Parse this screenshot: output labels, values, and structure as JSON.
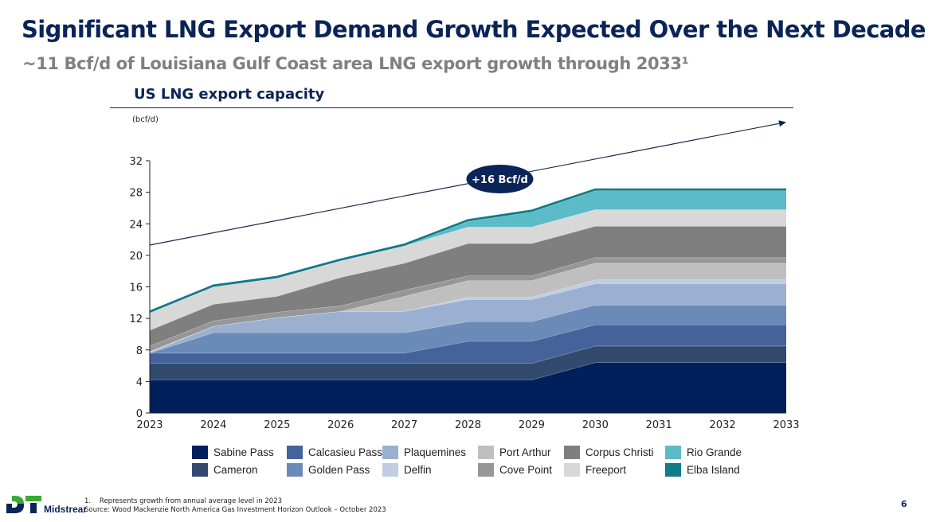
{
  "header": {
    "title": "Significant LNG Export Demand Growth Expected Over the Next Decade",
    "subtitle": "~11 Bcf/d of Louisiana Gulf Coast area LNG export growth through 2033¹"
  },
  "chart_data": {
    "type": "area",
    "stacked": true,
    "title": "US LNG export capacity",
    "units_label": "(bcf/d)",
    "xlabel": "",
    "ylabel": "bcf/d",
    "ylim": [
      0,
      32
    ],
    "yticks": [
      0,
      4,
      8,
      12,
      16,
      20,
      24,
      28,
      32
    ],
    "categories": [
      "2023",
      "2024",
      "2025",
      "2026",
      "2027",
      "2028",
      "2029",
      "2030",
      "2031",
      "2032",
      "2033"
    ],
    "grid": false,
    "legend_position": "bottom",
    "annotation": {
      "label": "+16 Bcf/d",
      "type": "trend-arrow",
      "from": {
        "x": "2023",
        "y": 21.3
      },
      "to": {
        "x": "2033",
        "y": 36.9
      }
    },
    "series": [
      {
        "name": "Sabine Pass",
        "color": "#001f5b",
        "values": [
          4.2,
          4.2,
          4.2,
          4.2,
          4.2,
          4.2,
          4.2,
          6.4,
          6.4,
          6.4,
          6.4
        ]
      },
      {
        "name": "Cameron",
        "color": "#324a6e",
        "values": [
          2.1,
          2.1,
          2.1,
          2.1,
          2.1,
          2.1,
          2.1,
          2.1,
          2.1,
          2.1,
          2.1
        ]
      },
      {
        "name": "Calcasieu Pass",
        "color": "#45639a",
        "values": [
          1.3,
          1.3,
          1.3,
          1.3,
          1.3,
          2.8,
          2.8,
          2.7,
          2.7,
          2.7,
          2.7
        ]
      },
      {
        "name": "Golden Pass",
        "color": "#6a8ab8",
        "values": [
          0.0,
          2.6,
          2.6,
          2.6,
          2.6,
          2.5,
          2.5,
          2.5,
          2.5,
          2.5,
          2.5
        ]
      },
      {
        "name": "Plaquemines",
        "color": "#9bb0d0",
        "values": [
          0.1,
          0.8,
          1.9,
          2.7,
          2.7,
          2.8,
          2.8,
          2.7,
          2.7,
          2.7,
          2.7
        ]
      },
      {
        "name": "Delfin",
        "color": "#c0cde2",
        "values": [
          0.1,
          0.0,
          0.0,
          0.0,
          0.0,
          0.3,
          0.3,
          0.5,
          0.5,
          0.5,
          0.5
        ]
      },
      {
        "name": "Port Arthur",
        "color": "#bfbfbf",
        "values": [
          0.0,
          0.0,
          0.0,
          0.0,
          1.9,
          2.1,
          2.1,
          2.1,
          2.1,
          2.1,
          2.1
        ]
      },
      {
        "name": "Cove Point",
        "color": "#979797",
        "values": [
          0.7,
          0.7,
          0.7,
          0.7,
          0.8,
          0.6,
          0.6,
          0.7,
          0.7,
          0.7,
          0.7
        ]
      },
      {
        "name": "Corpus Christi",
        "color": "#7f7f7f",
        "values": [
          2.0,
          2.1,
          2.0,
          3.6,
          3.4,
          4.1,
          4.1,
          4.0,
          4.0,
          4.0,
          4.0
        ]
      },
      {
        "name": "Freeport",
        "color": "#d8d8d8",
        "values": [
          2.2,
          2.2,
          2.3,
          2.1,
          2.2,
          2.1,
          2.1,
          2.1,
          2.1,
          2.1,
          2.1
        ]
      },
      {
        "name": "Rio Grande",
        "color": "#5bbcc7",
        "values": [
          0.0,
          0.0,
          0.0,
          0.0,
          0.0,
          0.7,
          1.9,
          2.4,
          2.4,
          2.4,
          2.4
        ]
      },
      {
        "name": "Elba Island",
        "color": "#127b88",
        "values": [
          0.2,
          0.2,
          0.2,
          0.2,
          0.2,
          0.2,
          0.2,
          0.2,
          0.2,
          0.2,
          0.2
        ]
      }
    ],
    "legend_order": [
      "Sabine Pass",
      "Calcasieu Pass",
      "Plaquemines",
      "Port Arthur",
      "Corpus Christi",
      "Rio Grande",
      "Cameron",
      "Golden Pass",
      "Delfin",
      "Cove Point",
      "Freeport",
      "Elba Island"
    ]
  },
  "footer": {
    "logo_letters": "DT",
    "logo_word": "Midstream",
    "logo_colors": {
      "green": "#3aa935",
      "navy": "#0b2458"
    },
    "footnote_1": "1.    Represents growth from annual average level in 2023",
    "source": "Source: Wood Mackenzie North America Gas Investment Horizon Outlook – October 2023",
    "page_number": "6"
  }
}
